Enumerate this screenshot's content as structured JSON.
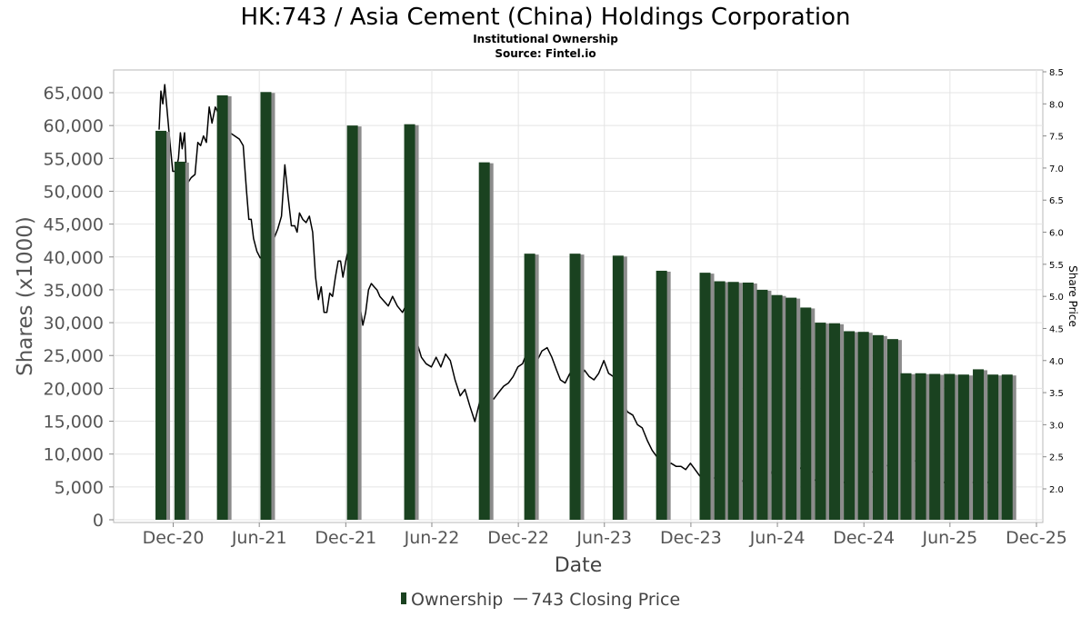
{
  "chart_data": {
    "type": "bar",
    "title": "HK:743 / Asia Cement (China) Holdings Corporation",
    "subtitle": "Institutional Ownership",
    "source": "Source: Fintel.io",
    "xlabel": "Date",
    "ylabel": "Shares (x1000)",
    "y2label": "Share Price",
    "x_range": [
      "2020-08-20",
      "2025-12-01"
    ],
    "ylim": [
      0,
      68000
    ],
    "y2lim": [
      1.6,
      8.5
    ],
    "x_ticks": [
      {
        "date": "2020-12-01",
        "label": "Dec-20"
      },
      {
        "date": "2021-06-01",
        "label": "Jun-21"
      },
      {
        "date": "2021-12-01",
        "label": "Dec-21"
      },
      {
        "date": "2022-06-01",
        "label": "Jun-22"
      },
      {
        "date": "2022-12-01",
        "label": "Dec-22"
      },
      {
        "date": "2023-06-01",
        "label": "Jun-23"
      },
      {
        "date": "2023-12-01",
        "label": "Dec-23"
      },
      {
        "date": "2024-06-01",
        "label": "Jun-24"
      },
      {
        "date": "2024-12-01",
        "label": "Dec-24"
      },
      {
        "date": "2025-06-01",
        "label": "Jun-25"
      },
      {
        "date": "2025-12-01",
        "label": "Dec-25"
      }
    ],
    "y_ticks": [
      {
        "value": 0,
        "label": "0"
      },
      {
        "value": 5000,
        "label": "5,000"
      },
      {
        "value": 10000,
        "label": "10,000"
      },
      {
        "value": 15000,
        "label": "15,000"
      },
      {
        "value": 20000,
        "label": "20,000"
      },
      {
        "value": 25000,
        "label": "25,000"
      },
      {
        "value": 30000,
        "label": "30,000"
      },
      {
        "value": 35000,
        "label": "35,000"
      },
      {
        "value": 40000,
        "label": "40,000"
      },
      {
        "value": 45000,
        "label": "45,000"
      },
      {
        "value": 50000,
        "label": "50,000"
      },
      {
        "value": 55000,
        "label": "55,000"
      },
      {
        "value": 60000,
        "label": "60,000"
      },
      {
        "value": 65000,
        "label": "65,000"
      }
    ],
    "y2_ticks": [
      {
        "value": 2.0,
        "label": "2.0"
      },
      {
        "value": 2.5,
        "label": "2.5"
      },
      {
        "value": 3.0,
        "label": "3.0"
      },
      {
        "value": 3.5,
        "label": "3.5"
      },
      {
        "value": 4.0,
        "label": "4.0"
      },
      {
        "value": 4.5,
        "label": "4.5"
      },
      {
        "value": 5.0,
        "label": "5.0"
      },
      {
        "value": 5.5,
        "label": "5.5"
      },
      {
        "value": 6.0,
        "label": "6.0"
      },
      {
        "value": 6.5,
        "label": "6.5"
      },
      {
        "value": 7.0,
        "label": "7.0"
      },
      {
        "value": 7.5,
        "label": "7.5"
      },
      {
        "value": 8.0,
        "label": "8.0"
      },
      {
        "value": 8.5,
        "label": "8.5"
      }
    ],
    "grid": true,
    "legend_position": "bottom-center",
    "series": [
      {
        "name": "Ownership",
        "type": "bar",
        "color": "#1a4220",
        "shadow_color": "#8c8c8c",
        "points": [
          {
            "date": "2020-11-05",
            "value": 59200
          },
          {
            "date": "2020-12-15",
            "value": 54500
          },
          {
            "date": "2021-03-15",
            "value": 64600
          },
          {
            "date": "2021-06-15",
            "value": 65100
          },
          {
            "date": "2021-12-15",
            "value": 60000
          },
          {
            "date": "2022-04-15",
            "value": 60200
          },
          {
            "date": "2022-09-20",
            "value": 54400
          },
          {
            "date": "2022-12-25",
            "value": 40500
          },
          {
            "date": "2023-03-31",
            "value": 40500
          },
          {
            "date": "2023-06-30",
            "value": 40200
          },
          {
            "date": "2023-09-30",
            "value": 37900
          },
          {
            "date": "2023-12-31",
            "value": 37600
          },
          {
            "date": "2024-01-31",
            "value": 36300
          },
          {
            "date": "2024-02-29",
            "value": 36200
          },
          {
            "date": "2024-03-31",
            "value": 36100
          },
          {
            "date": "2024-04-30",
            "value": 35000
          },
          {
            "date": "2024-05-31",
            "value": 34200
          },
          {
            "date": "2024-06-30",
            "value": 33800
          },
          {
            "date": "2024-07-31",
            "value": 32300
          },
          {
            "date": "2024-08-31",
            "value": 30000
          },
          {
            "date": "2024-09-30",
            "value": 29900
          },
          {
            "date": "2024-10-31",
            "value": 28700
          },
          {
            "date": "2024-11-30",
            "value": 28600
          },
          {
            "date": "2024-12-31",
            "value": 28100
          },
          {
            "date": "2025-01-31",
            "value": 27500
          },
          {
            "date": "2025-02-28",
            "value": 22300
          },
          {
            "date": "2025-03-31",
            "value": 22300
          },
          {
            "date": "2025-04-30",
            "value": 22200
          },
          {
            "date": "2025-05-31",
            "value": 22200
          },
          {
            "date": "2025-06-30",
            "value": 22100
          },
          {
            "date": "2025-07-31",
            "value": 22900
          },
          {
            "date": "2025-08-31",
            "value": 22100
          },
          {
            "date": "2025-09-30",
            "value": 22100
          }
        ]
      },
      {
        "name": "743 Closing Price",
        "type": "line",
        "axis": "right",
        "color": "#000000",
        "points": [
          [
            "2020-11-01",
            7.6
          ],
          [
            "2020-11-05",
            8.2
          ],
          [
            "2020-11-09",
            8.0
          ],
          [
            "2020-11-13",
            8.3
          ],
          [
            "2020-11-18",
            7.9
          ],
          [
            "2020-11-24",
            7.4
          ],
          [
            "2020-11-30",
            6.95
          ],
          [
            "2020-12-06",
            6.95
          ],
          [
            "2020-12-12",
            7.15
          ],
          [
            "2020-12-16",
            7.55
          ],
          [
            "2020-12-20",
            7.3
          ],
          [
            "2020-12-25",
            7.55
          ],
          [
            "2020-12-30",
            6.75
          ],
          [
            "2021-01-08",
            6.85
          ],
          [
            "2021-01-16",
            6.9
          ],
          [
            "2021-01-22",
            7.4
          ],
          [
            "2021-01-28",
            7.35
          ],
          [
            "2021-02-03",
            7.5
          ],
          [
            "2021-02-09",
            7.4
          ],
          [
            "2021-02-15",
            7.95
          ],
          [
            "2021-02-21",
            7.7
          ],
          [
            "2021-02-28",
            7.95
          ],
          [
            "2021-03-10",
            7.8
          ],
          [
            "2021-03-20",
            7.65
          ],
          [
            "2021-03-31",
            7.55
          ],
          [
            "2021-04-10",
            7.5
          ],
          [
            "2021-04-20",
            7.45
          ],
          [
            "2021-04-28",
            7.35
          ],
          [
            "2021-05-05",
            6.65
          ],
          [
            "2021-05-10",
            6.2
          ],
          [
            "2021-05-15",
            6.2
          ],
          [
            "2021-05-20",
            5.9
          ],
          [
            "2021-05-27",
            5.7
          ],
          [
            "2021-06-03",
            5.6
          ],
          [
            "2021-06-10",
            5.6
          ],
          [
            "2021-06-18",
            5.75
          ],
          [
            "2021-06-25",
            5.7
          ],
          [
            "2021-07-02",
            5.9
          ],
          [
            "2021-07-10",
            6.05
          ],
          [
            "2021-07-18",
            6.25
          ],
          [
            "2021-07-25",
            7.05
          ],
          [
            "2021-08-01",
            6.55
          ],
          [
            "2021-08-08",
            6.1
          ],
          [
            "2021-08-15",
            6.1
          ],
          [
            "2021-08-20",
            6.0
          ],
          [
            "2021-08-25",
            6.3
          ],
          [
            "2021-09-01",
            6.2
          ],
          [
            "2021-09-08",
            6.15
          ],
          [
            "2021-09-15",
            6.25
          ],
          [
            "2021-09-22",
            6.0
          ],
          [
            "2021-09-28",
            5.3
          ],
          [
            "2021-10-04",
            4.95
          ],
          [
            "2021-10-10",
            5.15
          ],
          [
            "2021-10-16",
            4.75
          ],
          [
            "2021-10-22",
            4.75
          ],
          [
            "2021-10-28",
            5.05
          ],
          [
            "2021-11-03",
            5.0
          ],
          [
            "2021-11-09",
            5.3
          ],
          [
            "2021-11-15",
            5.55
          ],
          [
            "2021-11-20",
            5.55
          ],
          [
            "2021-11-25",
            5.3
          ],
          [
            "2021-12-01",
            5.55
          ],
          [
            "2021-12-07",
            5.75
          ],
          [
            "2021-12-13",
            5.25
          ],
          [
            "2021-12-19",
            5.2
          ],
          [
            "2021-12-25",
            4.95
          ],
          [
            "2021-12-31",
            4.85
          ],
          [
            "2022-01-06",
            4.55
          ],
          [
            "2022-01-12",
            4.75
          ],
          [
            "2022-01-18",
            5.1
          ],
          [
            "2022-01-24",
            5.2
          ],
          [
            "2022-01-30",
            5.15
          ],
          [
            "2022-02-05",
            5.1
          ],
          [
            "2022-02-11",
            5.0
          ],
          [
            "2022-02-17",
            4.95
          ],
          [
            "2022-03-01",
            4.85
          ],
          [
            "2022-03-10",
            5.0
          ],
          [
            "2022-03-20",
            4.85
          ],
          [
            "2022-03-31",
            4.75
          ],
          [
            "2022-04-10",
            4.9
          ],
          [
            "2022-04-20",
            4.35
          ],
          [
            "2022-04-30",
            4.3
          ],
          [
            "2022-05-10",
            4.05
          ],
          [
            "2022-05-20",
            3.95
          ],
          [
            "2022-05-31",
            3.9
          ],
          [
            "2022-06-10",
            4.05
          ],
          [
            "2022-06-20",
            3.9
          ],
          [
            "2022-06-30",
            4.1
          ],
          [
            "2022-07-10",
            4.0
          ],
          [
            "2022-07-20",
            3.7
          ],
          [
            "2022-07-31",
            3.45
          ],
          [
            "2022-08-10",
            3.55
          ],
          [
            "2022-08-20",
            3.3
          ],
          [
            "2022-08-31",
            3.05
          ],
          [
            "2022-09-10",
            3.35
          ],
          [
            "2022-09-20",
            3.6
          ],
          [
            "2022-09-30",
            3.45
          ],
          [
            "2022-10-10",
            3.4
          ],
          [
            "2022-10-20",
            3.5
          ],
          [
            "2022-10-31",
            3.6
          ],
          [
            "2022-11-10",
            3.65
          ],
          [
            "2022-11-20",
            3.75
          ],
          [
            "2022-11-30",
            3.9
          ],
          [
            "2022-12-10",
            3.95
          ],
          [
            "2022-12-20",
            4.15
          ],
          [
            "2022-12-31",
            3.95
          ],
          [
            "2023-01-10",
            4.0
          ],
          [
            "2023-01-20",
            4.15
          ],
          [
            "2023-01-31",
            4.2
          ],
          [
            "2023-02-10",
            4.05
          ],
          [
            "2023-02-20",
            3.85
          ],
          [
            "2023-02-28",
            3.7
          ],
          [
            "2023-03-10",
            3.65
          ],
          [
            "2023-03-20",
            3.8
          ],
          [
            "2023-03-31",
            3.6
          ],
          [
            "2023-04-10",
            3.7
          ],
          [
            "2023-04-20",
            3.85
          ],
          [
            "2023-04-30",
            3.75
          ],
          [
            "2023-05-10",
            3.7
          ],
          [
            "2023-05-20",
            3.8
          ],
          [
            "2023-05-31",
            4.0
          ],
          [
            "2023-06-10",
            3.8
          ],
          [
            "2023-06-20",
            3.75
          ],
          [
            "2023-06-30",
            3.5
          ],
          [
            "2023-07-10",
            3.35
          ],
          [
            "2023-07-20",
            3.2
          ],
          [
            "2023-07-31",
            3.15
          ],
          [
            "2023-08-10",
            3.0
          ],
          [
            "2023-08-20",
            2.95
          ],
          [
            "2023-08-31",
            2.75
          ],
          [
            "2023-09-10",
            2.6
          ],
          [
            "2023-09-20",
            2.5
          ],
          [
            "2023-09-30",
            2.45
          ],
          [
            "2023-10-10",
            2.35
          ],
          [
            "2023-10-20",
            2.4
          ],
          [
            "2023-10-31",
            2.35
          ],
          [
            "2023-11-10",
            2.35
          ],
          [
            "2023-11-20",
            2.3
          ],
          [
            "2023-11-30",
            2.4
          ],
          [
            "2023-12-10",
            2.3
          ],
          [
            "2023-12-20",
            2.2
          ],
          [
            "2023-12-31",
            2.15
          ],
          [
            "2024-01-15",
            2.2
          ],
          [
            "2024-01-31",
            2.1
          ],
          [
            "2024-02-15",
            2.2
          ],
          [
            "2024-02-29",
            2.25
          ],
          [
            "2024-03-15",
            2.15
          ],
          [
            "2024-03-31",
            2.05
          ],
          [
            "2024-04-15",
            1.95
          ],
          [
            "2024-04-30",
            2.05
          ],
          [
            "2024-05-15",
            2.2
          ],
          [
            "2024-05-31",
            2.4
          ],
          [
            "2024-06-15",
            2.35
          ],
          [
            "2024-06-30",
            2.3
          ],
          [
            "2024-07-15",
            2.35
          ],
          [
            "2024-07-31",
            2.25
          ],
          [
            "2024-08-15",
            2.15
          ],
          [
            "2024-08-31",
            2.1
          ],
          [
            "2024-09-15",
            2.1
          ],
          [
            "2024-09-30",
            2.05
          ],
          [
            "2024-10-15",
            2.1
          ],
          [
            "2024-10-31",
            2.1
          ],
          [
            "2024-11-15",
            2.05
          ],
          [
            "2024-11-30",
            2.15
          ],
          [
            "2024-12-15",
            2.25
          ],
          [
            "2024-12-31",
            2.3
          ],
          [
            "2025-01-15",
            2.35
          ],
          [
            "2025-01-31",
            2.4
          ],
          [
            "2025-02-15",
            2.45
          ],
          [
            "2025-02-28",
            2.5
          ],
          [
            "2025-03-15",
            2.45
          ],
          [
            "2025-03-31",
            2.4
          ],
          [
            "2025-04-15",
            2.25
          ],
          [
            "2025-04-30",
            2.15
          ],
          [
            "2025-05-15",
            2.1
          ],
          [
            "2025-05-31",
            2.1
          ],
          [
            "2025-06-15",
            2.1
          ],
          [
            "2025-06-30",
            2.1
          ],
          [
            "2025-07-15",
            2.1
          ],
          [
            "2025-07-31",
            2.1
          ],
          [
            "2025-08-15",
            2.1
          ],
          [
            "2025-08-31",
            2.1
          ],
          [
            "2025-09-15",
            2.1
          ],
          [
            "2025-09-30",
            2.1
          ]
        ]
      }
    ]
  }
}
